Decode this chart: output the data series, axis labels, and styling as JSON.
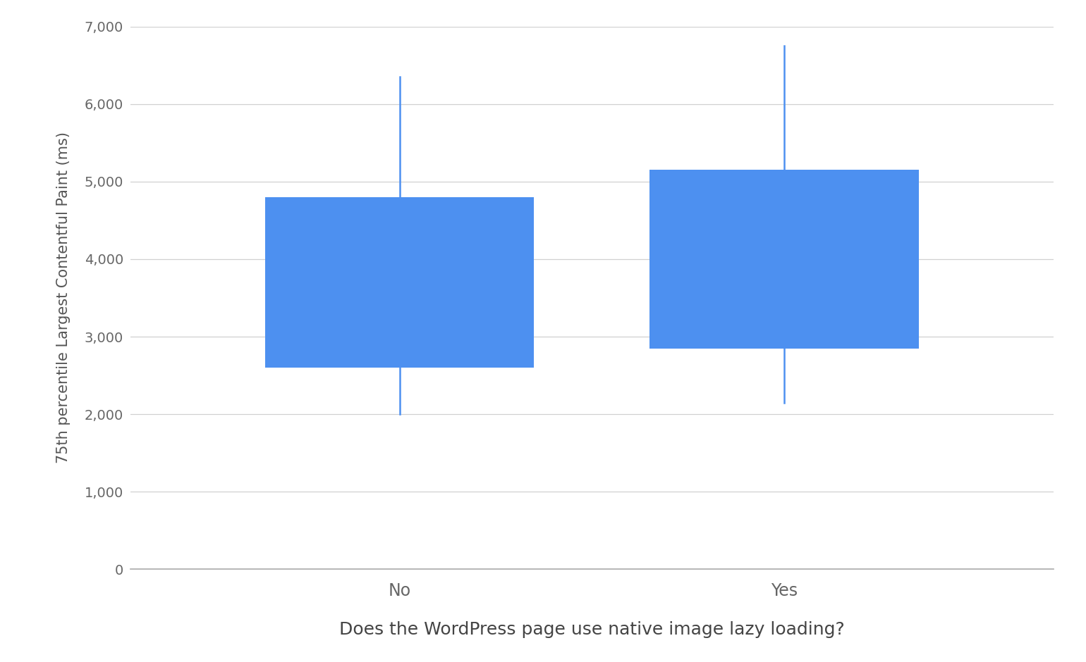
{
  "categories": [
    "No",
    "Yes"
  ],
  "boxes": [
    {
      "q1": 2600,
      "q3": 4800,
      "whisker_low": 2000,
      "whisker_high": 6350
    },
    {
      "q1": 2850,
      "q3": 5150,
      "whisker_low": 2150,
      "whisker_high": 6750
    }
  ],
  "box_color": "#4d90f0",
  "whisker_color": "#4d90f0",
  "background_color": "#ffffff",
  "grid_color": "#d0d0d0",
  "ylabel": "75th percentile Largest Contentful Paint (ms)",
  "xlabel": "Does the WordPress page use native image lazy loading?",
  "ylim": [
    0,
    7000
  ],
  "yticks": [
    0,
    1000,
    2000,
    3000,
    4000,
    5000,
    6000,
    7000
  ],
  "ytick_labels": [
    "0",
    "1,000",
    "2,000",
    "3,000",
    "4,000",
    "5,000",
    "6,000",
    "7,000"
  ],
  "box_width": 0.7,
  "whisker_linewidth": 1.8,
  "figsize": [
    15.4,
    9.4
  ],
  "dpi": 100,
  "x_positions": [
    1,
    2
  ],
  "xlim": [
    0.3,
    2.7
  ]
}
